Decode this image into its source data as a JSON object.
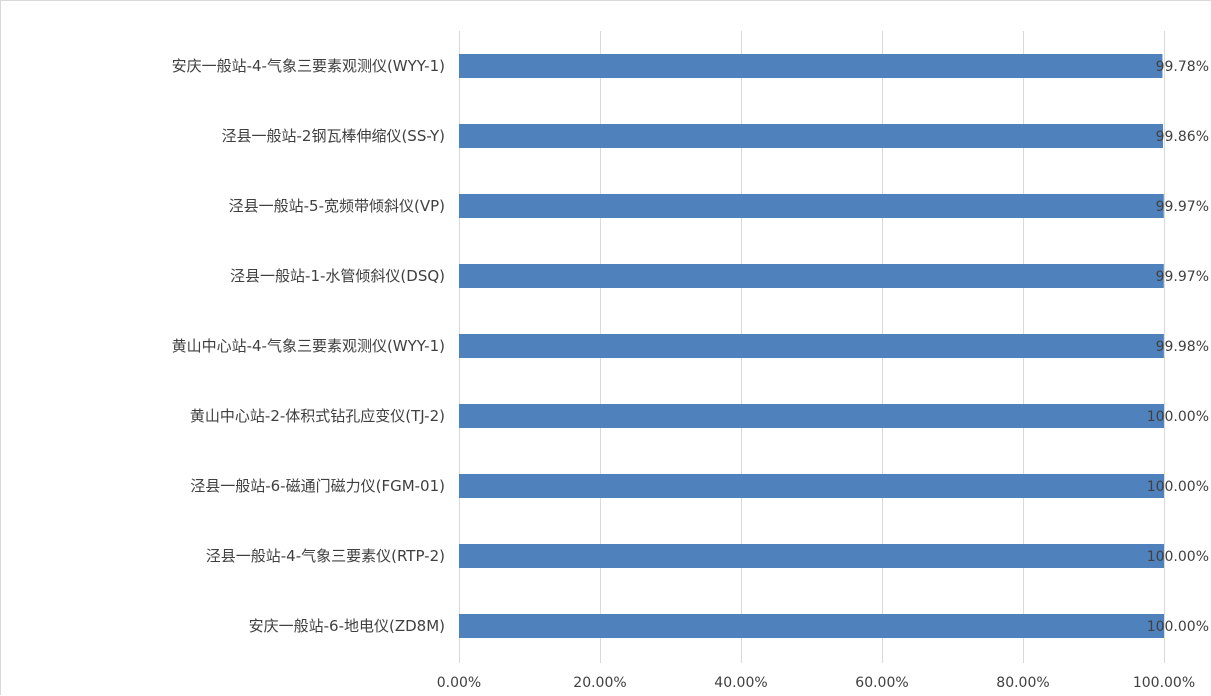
{
  "chart_data": {
    "type": "bar",
    "orientation": "horizontal",
    "categories": [
      "安庆一般站-4-气象三要素观测仪(WYY-1)",
      "泾县一般站-2钢瓦棒伸缩仪(SS-Y)",
      "泾县一般站-5-宽频带倾斜仪(VP)",
      "泾县一般站-1-水管倾斜仪(DSQ)",
      "黄山中心站-4-气象三要素观测仪(WYY-1)",
      "黄山中心站-2-体积式钻孔应变仪(TJ-2)",
      "泾县一般站-6-磁通门磁力仪(FGM-01)",
      "泾县一般站-4-气象三要素仪(RTP-2)",
      "安庆一般站-6-地电仪(ZD8M)"
    ],
    "values": [
      99.78,
      99.86,
      99.97,
      99.97,
      99.98,
      100.0,
      100.0,
      100.0,
      100.0
    ],
    "data_labels": [
      "99.78%",
      "99.86%",
      "99.97%",
      "99.97%",
      "99.98%",
      "100.00%",
      "100.00%",
      "100.00%",
      "100.00%"
    ],
    "xlim": [
      0,
      100
    ],
    "xticks": [
      0,
      20,
      40,
      60,
      80,
      100
    ],
    "xtick_labels": [
      "0.00%",
      "20.00%",
      "40.00%",
      "60.00%",
      "80.00%",
      "100.00%"
    ],
    "title": "",
    "xlabel": "",
    "ylabel": "",
    "grid": "vertical",
    "legend": "none",
    "bar_color": "#4f81bd",
    "grid_color": "#d9d9d9",
    "text_color": "#404040"
  }
}
